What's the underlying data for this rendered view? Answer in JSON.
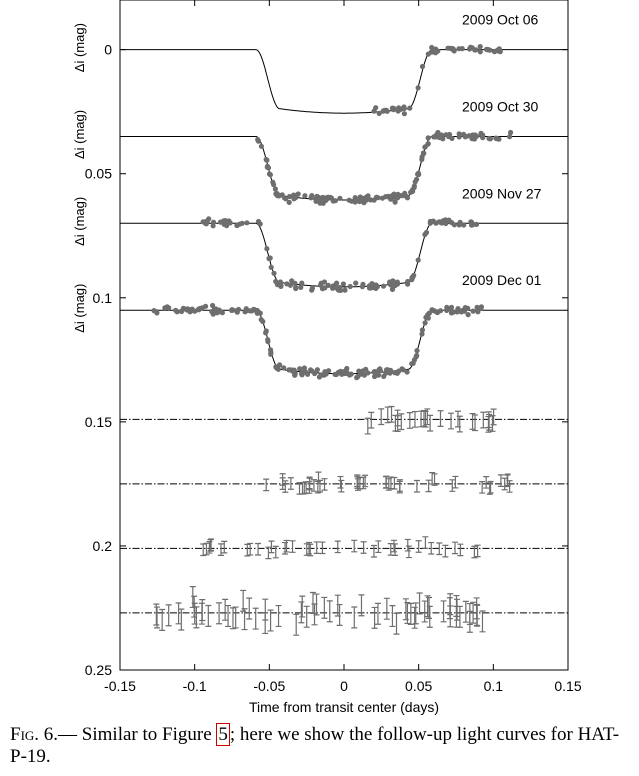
{
  "chart_data": {
    "type": "scatter",
    "xlabel": "Time from transit center (days)",
    "ylabel": "Δi (mag)",
    "xlim": [
      -0.15,
      0.15
    ],
    "ylim": [
      0.25,
      -0.02
    ],
    "y_reversed": true,
    "xticks": [
      "-0.15",
      "-0.1",
      "-0.05",
      "0",
      "0.05",
      "0.1",
      "0.15"
    ],
    "yticks": [
      "0",
      "0.05",
      "0.1",
      "0.15",
      "0.2",
      "0.25"
    ],
    "transit": {
      "depth": 0.0256,
      "t_total": 0.118,
      "t_ingress": 0.016
    },
    "light_curves": [
      {
        "date": "2009 Oct 06",
        "offset": 0.0,
        "x_range": [
          0.015,
          0.105
        ],
        "n": 55,
        "seed": 11
      },
      {
        "date": "2009 Oct 30",
        "offset": 0.035,
        "x_range": [
          -0.058,
          0.112
        ],
        "n": 150,
        "seed": 23
      },
      {
        "date": "2009 Nov 27",
        "offset": 0.07,
        "x_range": [
          -0.096,
          0.09
        ],
        "n": 118,
        "seed": 37
      },
      {
        "date": "2009 Dec 01",
        "offset": 0.105,
        "x_range": [
          -0.128,
          0.093
        ],
        "n": 190,
        "seed": 51
      }
    ],
    "residuals": [
      {
        "offset": 0.149,
        "x_range": [
          0.015,
          0.105
        ],
        "n": 28,
        "seed": 61,
        "scatter": 0.003
      },
      {
        "offset": 0.175,
        "x_range": [
          -0.058,
          0.112
        ],
        "n": 48,
        "seed": 73,
        "scatter": 0.0022
      },
      {
        "offset": 0.201,
        "x_range": [
          -0.096,
          0.09
        ],
        "n": 40,
        "seed": 89,
        "scatter": 0.0022
      },
      {
        "offset": 0.227,
        "x_range": [
          -0.128,
          0.093
        ],
        "n": 70,
        "seed": 97,
        "scatter": 0.004
      }
    ]
  },
  "caption": {
    "label": "Fig. 6.—",
    "text_before_ref": " Similar to Figure ",
    "ref": "5",
    "text_after_ref": "; here we show the follow-up light curves for HAT-P-19."
  }
}
